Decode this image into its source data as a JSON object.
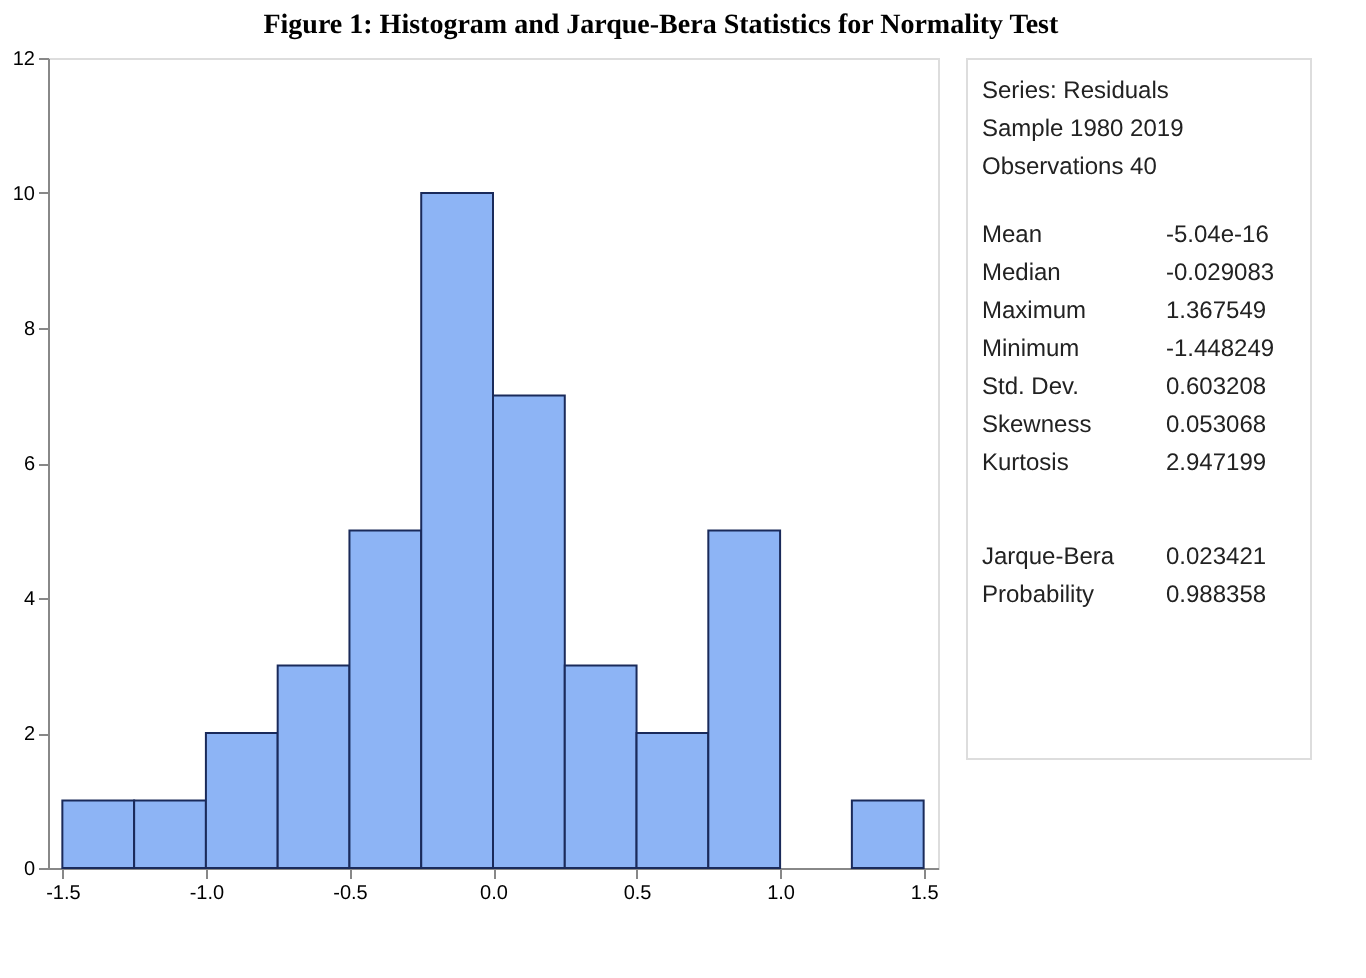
{
  "chart_data": {
    "type": "histogram",
    "title": "Figure 1: Histogram and Jarque-Bera Statistics for Normality Test",
    "bins": [
      -1.5,
      -1.25,
      -1.0,
      -0.75,
      -0.5,
      -0.25,
      0,
      0.25,
      0.5,
      0.75,
      1.0,
      1.25,
      1.5
    ],
    "values": [
      1,
      1,
      2,
      3,
      5,
      10,
      7,
      3,
      2,
      5,
      0,
      1
    ],
    "color": "#8db4f5",
    "xlim": [
      -1.55,
      1.55
    ],
    "xticks": [
      -1.5,
      {
        "value": -1,
        "label": "-1.0"
      },
      -0.5,
      {
        "value": 0,
        "label": "0.0"
      },
      0.5,
      {
        "value": 1,
        "label": "1.0"
      },
      1.5
    ],
    "ylim": [
      0,
      12
    ],
    "yticks": [
      0,
      2,
      4,
      6,
      8,
      10,
      12
    ],
    "grid": false,
    "annotations": [
      "Series: Residuals",
      "Sample 1980 2019",
      "Observations 40",
      "Mean",
      "-5.04e-16",
      "Median",
      "-0.029083",
      "Maximum",
      "1.367549",
      "Minimum",
      "-1.448249",
      "Std. Dev.",
      "0.603208",
      "Skewness",
      "0.053068",
      "Kurtosis",
      "2.947199",
      "Jarque-Bera",
      "0.023421",
      "Probability",
      "0.988358"
    ]
  }
}
